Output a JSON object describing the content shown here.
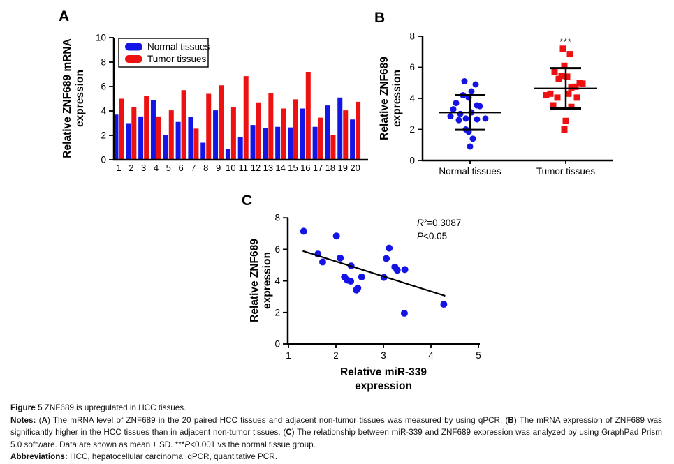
{
  "panels": {
    "a": {
      "label": "A"
    },
    "b": {
      "label": "B"
    },
    "c": {
      "label": "C"
    }
  },
  "colors": {
    "normal_blue": "#1414e6",
    "tumor_red": "#ee1111",
    "axis_black": "#000000"
  },
  "chart_data": [
    {
      "id": "A",
      "type": "bar",
      "ylabel_lines": [
        "Relative ZNF689 mRNA",
        "expression"
      ],
      "categories": [
        "1",
        "2",
        "3",
        "4",
        "5",
        "6",
        "7",
        "8",
        "9",
        "10",
        "11",
        "12",
        "13",
        "14",
        "15",
        "16",
        "17",
        "18",
        "19",
        "20"
      ],
      "series": [
        {
          "name": "Normal tissues",
          "color": "#1414e6",
          "values": [
            3.7,
            3.0,
            3.55,
            4.9,
            2.0,
            3.1,
            3.5,
            1.4,
            4.05,
            0.9,
            1.85,
            2.85,
            2.6,
            2.7,
            2.65,
            4.2,
            2.7,
            4.45,
            5.1,
            3.3
          ]
        },
        {
          "name": "Tumor tissues",
          "color": "#ee1111",
          "values": [
            5.0,
            4.3,
            5.25,
            3.55,
            4.05,
            5.7,
            2.55,
            5.4,
            6.1,
            4.3,
            6.85,
            4.7,
            5.45,
            4.2,
            4.95,
            7.2,
            3.45,
            2.0,
            4.05,
            4.75
          ]
        }
      ],
      "ylim": [
        0,
        10
      ],
      "yticks": [
        0,
        2,
        4,
        6,
        8,
        10
      ],
      "legend_position": "top-left",
      "grid": false
    },
    {
      "id": "B",
      "type": "scatter",
      "ylabel_lines": [
        "Relative ZNF689",
        "expression"
      ],
      "ylim": [
        0,
        8
      ],
      "yticks": [
        0,
        2,
        4,
        6,
        8
      ],
      "significance": "***",
      "groups": [
        {
          "name": "Normal tissues",
          "color": "#1414e6",
          "marker": "circle",
          "mean": 3.08,
          "sd_upper": 4.2,
          "sd_lower": 1.97,
          "points": [
            {
              "v": 3.7,
              "dx": -20
            },
            {
              "v": 3.0,
              "dx": -14
            },
            {
              "v": 3.55,
              "dx": 10
            },
            {
              "v": 4.9,
              "dx": 8
            },
            {
              "v": 2.0,
              "dx": -6
            },
            {
              "v": 3.1,
              "dx": 2
            },
            {
              "v": 3.5,
              "dx": 14
            },
            {
              "v": 1.4,
              "dx": 4
            },
            {
              "v": 4.05,
              "dx": -2
            },
            {
              "v": 0.9,
              "dx": 0
            },
            {
              "v": 1.85,
              "dx": -2
            },
            {
              "v": 2.85,
              "dx": -28
            },
            {
              "v": 2.6,
              "dx": -16
            },
            {
              "v": 2.7,
              "dx": -6
            },
            {
              "v": 2.65,
              "dx": 10
            },
            {
              "v": 4.2,
              "dx": -10
            },
            {
              "v": 2.7,
              "dx": 22
            },
            {
              "v": 4.45,
              "dx": 2
            },
            {
              "v": 5.1,
              "dx": -8
            },
            {
              "v": 3.3,
              "dx": -24
            }
          ]
        },
        {
          "name": "Tumor tissues",
          "color": "#ee1111",
          "marker": "square",
          "mean": 4.65,
          "sd_upper": 5.95,
          "sd_lower": 3.35,
          "points": [
            {
              "v": 5.0,
              "dx": 20
            },
            {
              "v": 4.3,
              "dx": -22
            },
            {
              "v": 5.25,
              "dx": -10
            },
            {
              "v": 3.55,
              "dx": -18
            },
            {
              "v": 4.05,
              "dx": -12
            },
            {
              "v": 5.7,
              "dx": -16
            },
            {
              "v": 2.55,
              "dx": 0
            },
            {
              "v": 5.4,
              "dx": 2
            },
            {
              "v": 6.1,
              "dx": -2
            },
            {
              "v": 4.3,
              "dx": 4
            },
            {
              "v": 6.85,
              "dx": 6
            },
            {
              "v": 4.7,
              "dx": 8
            },
            {
              "v": 5.45,
              "dx": -6
            },
            {
              "v": 4.2,
              "dx": -28
            },
            {
              "v": 4.95,
              "dx": 24
            },
            {
              "v": 7.2,
              "dx": -4
            },
            {
              "v": 3.45,
              "dx": 8
            },
            {
              "v": 2.0,
              "dx": -2
            },
            {
              "v": 4.05,
              "dx": 16
            },
            {
              "v": 4.75,
              "dx": 14
            }
          ]
        }
      ]
    },
    {
      "id": "C",
      "type": "scatter",
      "xlabel_lines": [
        "Relative miR-339",
        "expression"
      ],
      "ylabel_lines": [
        "Relative ZNF689",
        "expression"
      ],
      "xlim": [
        1,
        5
      ],
      "ylim": [
        0,
        8
      ],
      "xticks": [
        1,
        2,
        3,
        4,
        5
      ],
      "yticks": [
        0,
        2,
        4,
        6,
        8
      ],
      "point_color": "#1414e6",
      "points": [
        [
          1.32,
          7.15
        ],
        [
          1.62,
          5.7
        ],
        [
          1.72,
          5.2
        ],
        [
          2.01,
          6.85
        ],
        [
          2.09,
          5.45
        ],
        [
          2.18,
          4.25
        ],
        [
          2.24,
          4.05
        ],
        [
          2.31,
          3.98
        ],
        [
          2.32,
          4.95
        ],
        [
          2.43,
          3.42
        ],
        [
          2.46,
          3.55
        ],
        [
          2.54,
          4.25
        ],
        [
          3.01,
          4.22
        ],
        [
          3.06,
          5.42
        ],
        [
          3.12,
          6.08
        ],
        [
          3.24,
          4.88
        ],
        [
          3.29,
          4.68
        ],
        [
          3.44,
          1.95
        ],
        [
          3.45,
          4.72
        ],
        [
          4.27,
          2.52
        ]
      ],
      "trendline": {
        "x1": 1.3,
        "y1": 5.9,
        "x2": 4.3,
        "y2": 3.05,
        "color": "#000000"
      },
      "annotation": {
        "r2": "R²=0.3087",
        "p": "P<0.05"
      }
    }
  ],
  "caption": {
    "lines": [
      {
        "justify": false,
        "segments": [
          {
            "t": "Figure 5 ",
            "b": true
          },
          {
            "t": "ZNF689 is upregulated in HCC tissues."
          }
        ]
      },
      {
        "justify": true,
        "segments": [
          {
            "t": "Notes: ",
            "b": true
          },
          {
            "t": "("
          },
          {
            "t": "A",
            "b": true
          },
          {
            "t": ") The mRNA level of ZNF689 in the 20 paired HCC tissues and adjacent non-tumor tissues was measured by using qPCR. ("
          },
          {
            "t": "B",
            "b": true
          },
          {
            "t": ") The mRNA expression of ZNF689 was significantly higher in the HCC tissues than in adjacent non-tumor tissues. ("
          },
          {
            "t": "C",
            "b": true
          },
          {
            "t": ") The relationship between miR-339 and ZNF689 expression was analyzed by using GraphPad Prism 5.0 software. Data are shown as mean ± SD. ***"
          },
          {
            "t": "P",
            "i": true
          },
          {
            "t": "<0.001 vs the normal tissue group."
          }
        ]
      },
      {
        "justify": false,
        "segments": [
          {
            "t": "Abbreviations: ",
            "b": true
          },
          {
            "t": "HCC, hepatocellular carcinoma; qPCR, quantitative PCR."
          }
        ]
      }
    ]
  }
}
